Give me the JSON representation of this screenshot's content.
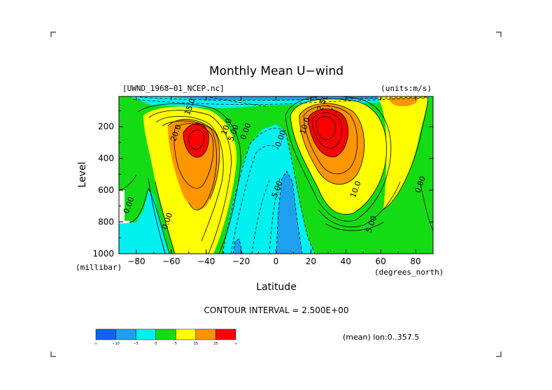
{
  "chart_data": {
    "type": "heatmap",
    "title": "Monthly Mean U−wind",
    "dataset_label": "[UWND_1968−01_NCEP.nc]",
    "units_label": "(units:m/s)",
    "xlabel": "Latitude",
    "ylabel": "Level",
    "x_units": "(degrees_north)",
    "y_units": "(millibar)",
    "xlim": [
      -90,
      90
    ],
    "ylim": [
      1000,
      10
    ],
    "y_inverted": true,
    "x_ticks": [
      -80,
      -60,
      -40,
      -20,
      0,
      20,
      40,
      60,
      80
    ],
    "y_ticks": [
      200,
      400,
      600,
      800,
      1000
    ],
    "contour_interval_label": "CONTOUR INTERVAL = 2.500E+00",
    "contour_interval": 2.5,
    "mean_label": "(mean) lon:0..357.5",
    "jets": [
      {
        "name": "",
        "lat": -45,
        "level": 240,
        "max": 27.5
      },
      {
        "name": "",
        "lat": 28,
        "level": 200,
        "max": 37.5
      }
    ],
    "contour_labels": [
      {
        "text": "15.0",
        "lat": -48,
        "level": 80
      },
      {
        "text": "20.0",
        "lat": -56,
        "level": 245
      },
      {
        "text": "10.0",
        "lat": -27,
        "level": 205
      },
      {
        "text": "5.00",
        "lat": -23,
        "level": 245
      },
      {
        "text": "0.00",
        "lat": -16,
        "level": 235
      },
      {
        "text": "0.00",
        "lat": 4,
        "level": 280
      },
      {
        "text": "0.00",
        "lat": -83,
        "level": 700
      },
      {
        "text": "0.00",
        "lat": -61,
        "level": 800
      },
      {
        "text": "5.00",
        "lat": 2,
        "level": 600
      },
      {
        "text": "10.0",
        "lat": 18,
        "level": 200
      },
      {
        "text": "10.0",
        "lat": 47,
        "level": 600
      },
      {
        "text": "5.00",
        "lat": 56,
        "level": 820
      },
      {
        "text": "0.00",
        "lat": 84,
        "level": 570
      },
      {
        "text": "2.50",
        "lat": 28,
        "level": 55
      }
    ],
    "colorbar": {
      "colors": [
        "#0a64f0",
        "#1ea0f0",
        "#00f0f0",
        "#14dc14",
        "#ffff00",
        "#ff9600",
        "#ff0000"
      ],
      "tick_labels": [
        "∞",
        "−10",
        "−5",
        "0",
        "5",
        "15",
        "25",
        "∞"
      ]
    }
  }
}
